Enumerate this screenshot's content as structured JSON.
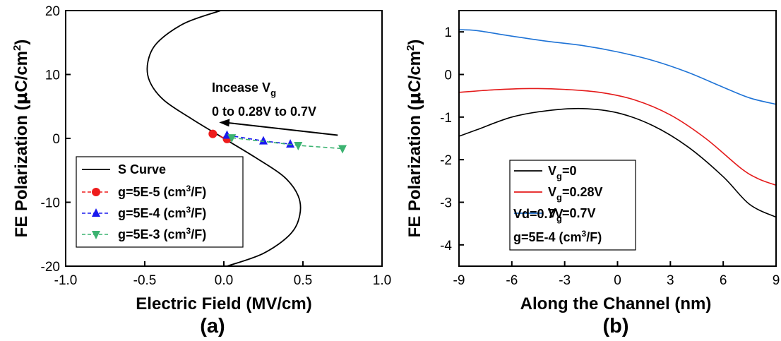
{
  "chart_data": [
    {
      "type": "line",
      "panel_label": "(a)",
      "xlabel": "Electric Field (MV/cm)",
      "ylabel_main": "FE Polarization (",
      "ylabel_mu": "μ",
      "ylabel_unit": "C/cm",
      "ylabel_sup": "2",
      "ylabel_close": ")",
      "xlim": [
        -1.0,
        1.0
      ],
      "ylim": [
        -20,
        20
      ],
      "xticks": [
        -1.0,
        -0.5,
        0.0,
        0.5,
        1.0
      ],
      "xtick_labels": [
        "-1.0",
        "-0.5",
        "0.0",
        "0.5",
        "1.0"
      ],
      "yticks": [
        -20,
        -10,
        0,
        10,
        20
      ],
      "ytick_labels": [
        "-20",
        "-10",
        "0",
        "10",
        "20"
      ],
      "s_curve": {
        "name": "S Curve",
        "color": "#000000",
        "points": [
          [
            0.02,
            -20
          ],
          [
            0.25,
            -18
          ],
          [
            0.42,
            -15
          ],
          [
            0.48,
            -12
          ],
          [
            0.47,
            -9
          ],
          [
            0.38,
            -6
          ],
          [
            0.2,
            -3
          ],
          [
            0.0,
            0
          ],
          [
            -0.2,
            3
          ],
          [
            -0.38,
            6
          ],
          [
            -0.47,
            9
          ],
          [
            -0.48,
            12
          ],
          [
            -0.42,
            15
          ],
          [
            -0.25,
            18
          ],
          [
            -0.02,
            20
          ]
        ]
      },
      "series": [
        {
          "name_prefix": "g=5E-5 (cm",
          "name_sup": "3",
          "name_suffix": "/F)",
          "color": "#ee1c1c",
          "marker": "circle",
          "points": [
            [
              -0.07,
              0.7
            ],
            [
              0.02,
              -0.1
            ]
          ]
        },
        {
          "name_prefix": "g=5E-4 (cm",
          "name_sup": "3",
          "name_suffix": "/F)",
          "color": "#1a1aee",
          "marker": "triangle-up",
          "points": [
            [
              0.02,
              0.5
            ],
            [
              0.25,
              -0.4
            ],
            [
              0.42,
              -0.9
            ]
          ]
        },
        {
          "name_prefix": "g=5E-3 (cm",
          "name_sup": "3",
          "name_suffix": "/F)",
          "color": "#3cb371",
          "marker": "triangle-down",
          "points": [
            [
              0.05,
              0.1
            ],
            [
              0.47,
              -1.1
            ],
            [
              0.75,
              -1.6
            ]
          ]
        }
      ],
      "annotation": {
        "line1_prefix": "Incease V",
        "line1_sub": "g",
        "line2": "0 to 0.28V to 0.7V",
        "arrow_from": [
          0.72,
          0.5
        ],
        "arrow_to": [
          -0.03,
          2.5
        ]
      }
    },
    {
      "type": "line",
      "panel_label": "(b)",
      "xlabel": "Along the Channel (nm)",
      "ylabel_main": "FE Polarization (",
      "ylabel_mu": "μ",
      "ylabel_unit": "C/cm",
      "ylabel_sup": "2",
      "ylabel_close": ")",
      "xlim": [
        -9,
        9
      ],
      "ylim": [
        -4.5,
        1.5
      ],
      "xticks": [
        -9,
        -6,
        -3,
        0,
        3,
        6,
        9
      ],
      "xtick_labels": [
        "-9",
        "-6",
        "-3",
        "0",
        "3",
        "6",
        "9"
      ],
      "yticks": [
        -4,
        -3,
        -2,
        -1,
        0,
        1
      ],
      "ytick_labels": [
        "-4",
        "-3",
        "-2",
        "-1",
        "0",
        "1"
      ],
      "series": [
        {
          "name_prefix": "V",
          "name_sub": "g",
          "name_suffix": "=0",
          "color": "#000000",
          "points": [
            [
              -9,
              -1.45
            ],
            [
              -8,
              -1.3
            ],
            [
              -6,
              -1.0
            ],
            [
              -4,
              -0.85
            ],
            [
              -2,
              -0.8
            ],
            [
              0,
              -0.9
            ],
            [
              2,
              -1.2
            ],
            [
              4,
              -1.7
            ],
            [
              6,
              -2.4
            ],
            [
              7.5,
              -3.05
            ],
            [
              9,
              -3.35
            ]
          ]
        },
        {
          "name_prefix": "V",
          "name_sub": "g",
          "name_suffix": "=0.28V",
          "color": "#e41a1a",
          "points": [
            [
              -9,
              -0.42
            ],
            [
              -7,
              -0.36
            ],
            [
              -5,
              -0.33
            ],
            [
              -3,
              -0.35
            ],
            [
              -1,
              -0.42
            ],
            [
              1,
              -0.6
            ],
            [
              3,
              -0.95
            ],
            [
              5,
              -1.5
            ],
            [
              7,
              -2.2
            ],
            [
              8,
              -2.45
            ],
            [
              9,
              -2.6
            ]
          ]
        },
        {
          "name_prefix": "V",
          "name_sub": "g",
          "name_suffix": "=0.7V",
          "color": "#1e73d6",
          "points": [
            [
              -9,
              1.05
            ],
            [
              -8,
              1.03
            ],
            [
              -6,
              0.9
            ],
            [
              -4,
              0.78
            ],
            [
              -2,
              0.68
            ],
            [
              0,
              0.53
            ],
            [
              2,
              0.33
            ],
            [
              4,
              0.05
            ],
            [
              6,
              -0.3
            ],
            [
              7.5,
              -0.55
            ],
            [
              9,
              -0.7
            ]
          ]
        }
      ],
      "legend_notes": [
        "Vd=0.7V",
        "g=5E-4 (cm3/F)"
      ],
      "note_g_prefix": "g=5E-4 (cm",
      "note_g_sup": "3",
      "note_g_suffix": "/F)"
    }
  ]
}
